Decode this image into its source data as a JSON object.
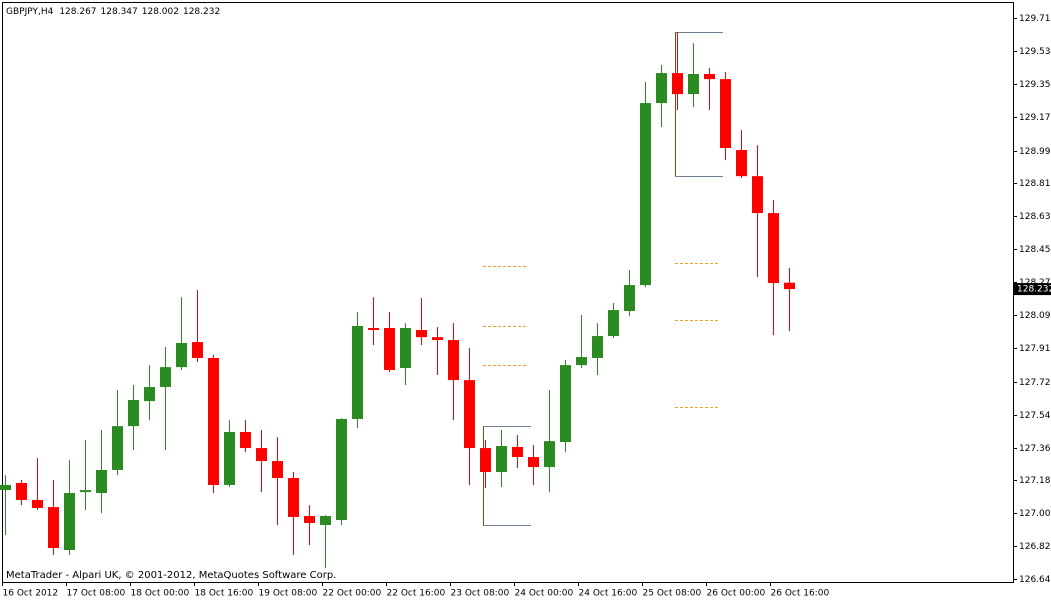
{
  "chart_data": {
    "type": "candlestick",
    "title": "GBPJPY,H4",
    "footer": "MetaTrader - Alpari UK, © 2001-2012, MetaQuotes Software Corp.",
    "up_color": "#2b8b22",
    "down_color": "#ff0000",
    "categories": [
      "16 Oct 2012",
      null,
      null,
      null,
      "17 Oct 08:00",
      null,
      null,
      null,
      "18 Oct 00:00",
      null,
      null,
      null,
      "18 Oct 16:00",
      null,
      null,
      null,
      "19 Oct 08:00",
      null,
      null,
      null,
      "22 Oct 00:00",
      null,
      null,
      null,
      "22 Oct 16:00",
      null,
      null,
      null,
      "23 Oct 08:00",
      null,
      null,
      null,
      "24 Oct 00:00",
      null,
      null,
      null,
      "24 Oct 16:00",
      null,
      null,
      null,
      "25 Oct 08:00",
      null,
      null,
      null,
      "26 Oct 00:00",
      null,
      null,
      null,
      "26 Oct 16:00",
      null
    ],
    "open": [
      127.132,
      127.171,
      127.078,
      127.039,
      126.804,
      127.121,
      127.116,
      127.242,
      127.482,
      127.619,
      127.696,
      127.805,
      127.942,
      127.855,
      127.16,
      127.45,
      127.362,
      127.291,
      127.198,
      126.99,
      126.941,
      126.968,
      127.521,
      128.019,
      128.019,
      127.8,
      128.008,
      127.969,
      127.953,
      127.734,
      127.362,
      127.231,
      127.368,
      127.313,
      127.258,
      127.395,
      127.816,
      127.855,
      127.975,
      128.112,
      128.254,
      129.25,
      129.414,
      129.299,
      129.409,
      129.381,
      128.993,
      128.85,
      128.648,
      128.267
    ],
    "high": [
      127.214,
      127.187,
      127.307,
      127.187,
      127.296,
      127.406,
      127.461,
      127.679,
      127.707,
      127.816,
      127.915,
      128.188,
      128.227,
      127.871,
      127.515,
      127.515,
      127.461,
      127.422,
      127.231,
      127.05,
      126.995,
      127.526,
      128.106,
      128.188,
      128.106,
      128.046,
      128.183,
      128.024,
      128.046,
      127.909,
      127.406,
      127.461,
      127.433,
      127.379,
      127.679,
      127.844,
      128.09,
      128.046,
      128.156,
      128.336,
      129.365,
      129.458,
      129.638,
      129.578,
      129.441,
      129.42,
      129.102,
      129.02,
      128.719,
      128.347
    ],
    "low": [
      126.886,
      127.05,
      127.023,
      126.777,
      126.777,
      127.023,
      127.006,
      127.214,
      127.351,
      127.515,
      127.351,
      127.789,
      127.833,
      127.116,
      127.149,
      127.34,
      127.121,
      126.941,
      126.777,
      126.831,
      126.705,
      126.941,
      127.472,
      127.926,
      127.778,
      127.707,
      127.926,
      127.762,
      127.515,
      127.16,
      127.143,
      127.149,
      127.253,
      127.16,
      127.121,
      127.34,
      127.8,
      127.762,
      127.964,
      128.084,
      128.243,
      129.119,
      129.212,
      129.228,
      129.212,
      128.938,
      128.84,
      128.298,
      127.98,
      128.002
    ],
    "close": [
      127.16,
      127.078,
      127.034,
      126.815,
      127.116,
      127.132,
      127.242,
      127.482,
      127.625,
      127.696,
      127.805,
      127.937,
      127.855,
      127.16,
      127.45,
      127.362,
      127.291,
      127.198,
      126.985,
      126.952,
      126.99,
      127.521,
      128.03,
      128.008,
      127.789,
      128.019,
      127.969,
      127.953,
      127.734,
      127.362,
      127.231,
      127.373,
      127.313,
      127.258,
      127.4,
      127.816,
      127.86,
      127.975,
      128.117,
      128.254,
      129.25,
      129.414,
      129.299,
      129.409,
      129.381,
      129.004,
      128.85,
      128.648,
      128.265,
      128.232
    ],
    "ylim": [
      126.629,
      129.803
    ],
    "yticks": [
      129.715,
      129.535,
      129.355,
      129.175,
      {
        "value": 128.99,
        "label": "128.990"
      },
      {
        "value": 128.81,
        "label": "128.810"
      },
      {
        "value": 128.63,
        "label": "128.630"
      },
      {
        "value": 128.45,
        "label": "128.450"
      },
      {
        "value": 128.27,
        "label": "128.270"
      },
      {
        "value": 128.09,
        "label": "128.090"
      },
      {
        "value": 127.91,
        "label": "127.910"
      },
      127.725,
      127.545,
      127.365,
      127.185,
      127.005,
      126.825,
      126.645
    ],
    "grid": false
  }
}
